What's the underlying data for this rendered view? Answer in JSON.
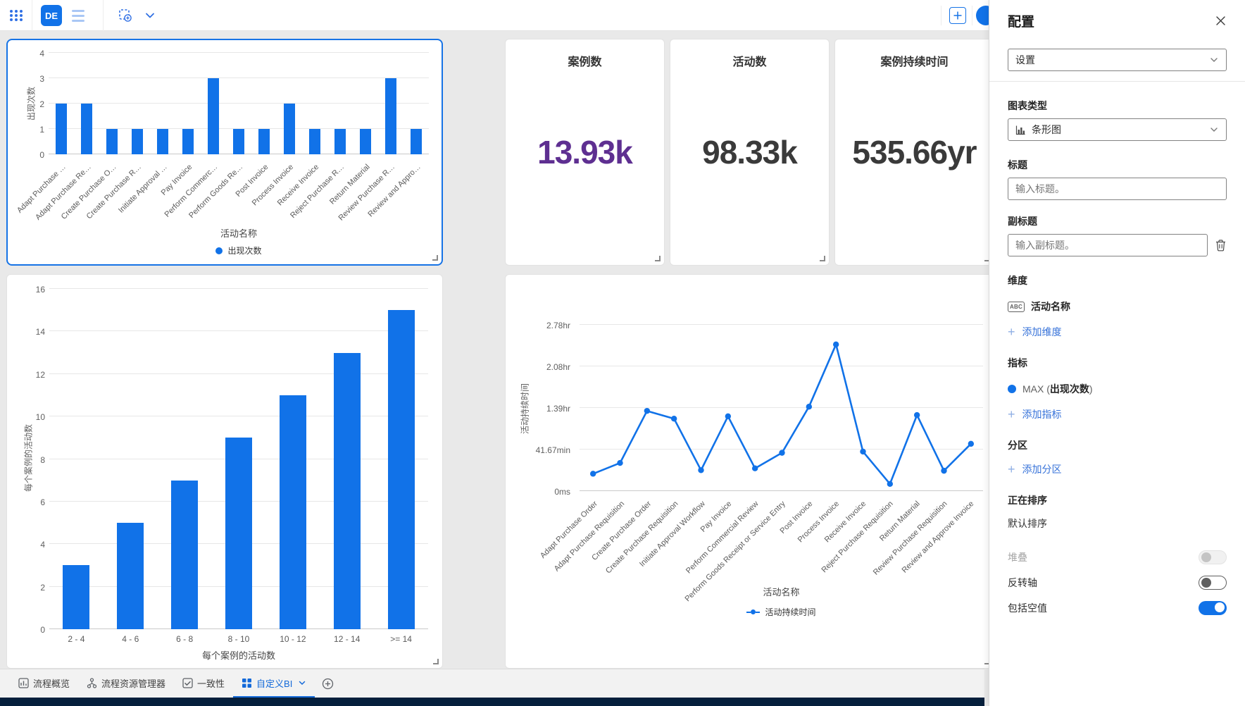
{
  "topbar": {
    "workspace_badge": "DE"
  },
  "kpis": [
    {
      "title": "案例数",
      "value": "13.93k",
      "color": "#5e2f91"
    },
    {
      "title": "活动数",
      "value": "98.33k",
      "color": "#3a3a3a"
    },
    {
      "title": "案例持续时间",
      "value": "535.66yr",
      "color": "#3a3a3a"
    }
  ],
  "chart_data": [
    {
      "type": "bar",
      "categories": [
        "Adapt Purchase …",
        "Adapt Purchase Re…",
        "Create Purchase O…",
        "Create Purchase R…",
        "Initiate Approval …",
        "Pay Invoice",
        "Perform Commerc…",
        "Perform Goods Re…",
        "Post Invoice",
        "Process Invoice",
        "Receive Invoice",
        "Reject Purchase R…",
        "Return Material",
        "Review Purchase R…",
        "Review and Appro…"
      ],
      "values": [
        2,
        2,
        1,
        1,
        1,
        1,
        3,
        1,
        1,
        2,
        1,
        1,
        1,
        3,
        1
      ],
      "xlabel": "活动名称",
      "ylabel": "出现次数",
      "ylim": [
        0,
        4
      ],
      "yticks": [
        0,
        1,
        2,
        3,
        4
      ],
      "legend": [
        "出现次数"
      ],
      "grid": true,
      "legend_position": "bottom",
      "bar_color": "#1172e8"
    },
    {
      "type": "bar",
      "categories": [
        "2 - 4",
        "4 - 6",
        "6 - 8",
        "8 - 10",
        "10 - 12",
        "12 - 14",
        ">= 14"
      ],
      "values": [
        3,
        5,
        7,
        9,
        11,
        13,
        15
      ],
      "xlabel": "每个案例的活动数",
      "ylabel": "每个案例的活动数",
      "ylim": [
        0,
        16
      ],
      "yticks": [
        0,
        2,
        4,
        6,
        8,
        10,
        12,
        14,
        16
      ],
      "grid": true,
      "bar_color": "#1172e8"
    },
    {
      "type": "line",
      "categories": [
        "Adapt Purchase Order",
        "Adapt Purchase Requisition",
        "Create Purchase Order",
        "Create Purchase Requisition",
        "Initiate Approval Workflow",
        "Pay Invoice",
        "Perform Commercial Review",
        "Perform Goods Receipt or Service Entry",
        "Post Invoice",
        "Process Invoice",
        "Receive Invoice",
        "Reject Purchase Requisition",
        "Return Material",
        "Review Purchase Requisition",
        "Review and Approve Invoice"
      ],
      "values_hours": [
        0.29,
        0.47,
        1.34,
        1.21,
        0.35,
        1.25,
        0.38,
        0.64,
        1.41,
        2.45,
        0.66,
        0.12,
        1.27,
        0.34,
        0.79
      ],
      "ytick_labels": [
        "0ms",
        "41.67min",
        "1.39hr",
        "2.08hr",
        "2.78hr"
      ],
      "ymax_hours": 2.7778,
      "xlabel": "活动名称",
      "ylabel": "活动持续时间",
      "legend": [
        "活动持续时间"
      ],
      "grid": true,
      "legend_position": "bottom",
      "line_color": "#1172e8"
    }
  ],
  "tabs": {
    "items": [
      {
        "label": "流程概览",
        "active": false
      },
      {
        "label": "流程资源管理器",
        "active": false
      },
      {
        "label": "一致性",
        "active": false
      },
      {
        "label": "自定义BI",
        "active": true
      }
    ]
  },
  "panel": {
    "title": "配置",
    "settings_select_value": "设置",
    "chart_type_label": "图表类型",
    "chart_type_value": "条形图",
    "title_label": "标题",
    "title_placeholder": "输入标题。",
    "subtitle_label": "副标题",
    "subtitle_placeholder": "输入副标题。",
    "dimensions_label": "维度",
    "dimension_badge": "ABC",
    "dimension_item": "活动名称",
    "add_dimension_label": "添加维度",
    "metrics_label": "指标",
    "metric_item": {
      "aggregation": "MAX",
      "open": "(",
      "field": "出现次数",
      "close": ")"
    },
    "add_metric_label": "添加指标",
    "partition_label": "分区",
    "add_partition_label": "添加分区",
    "sorting_label": "正在排序",
    "sorting_value": "默认排序",
    "stack_toggle_label": "堆叠",
    "invert_axis_toggle_label": "反转轴",
    "include_nulls_toggle_label": "包括空值",
    "accent_color": "#1172e8"
  }
}
